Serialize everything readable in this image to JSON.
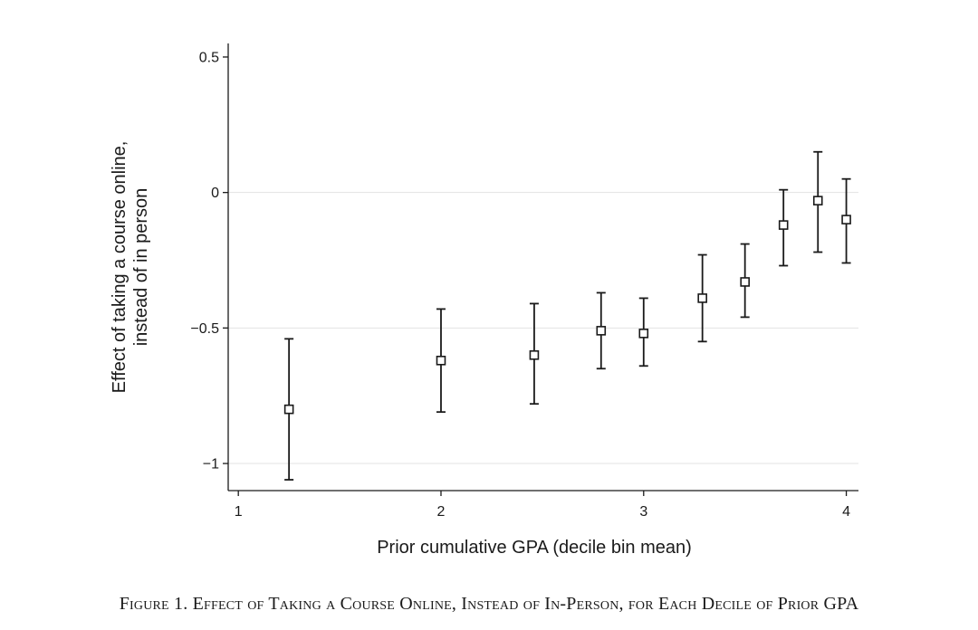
{
  "chart_data": {
    "type": "scatter",
    "title": "",
    "xlabel": "Prior cumulative GPA (decile bin mean)",
    "ylabel_lines": [
      "Effect of taking a course online,",
      "instead of in person"
    ],
    "xlim": [
      0.95,
      4.06
    ],
    "ylim": [
      -1.1,
      0.55
    ],
    "xticks": [
      {
        "value": 1,
        "label": "1"
      },
      {
        "value": 2,
        "label": "2"
      },
      {
        "value": 3,
        "label": "3"
      },
      {
        "value": 4,
        "label": "4"
      }
    ],
    "yticks": [
      {
        "value": 0.5,
        "label": "0.5"
      },
      {
        "value": 0,
        "label": "0"
      },
      {
        "value": -0.5,
        "label": "−0.5"
      },
      {
        "value": -1,
        "label": "−1"
      }
    ],
    "grid": "horizontal",
    "marker": "hollow-square",
    "points": [
      {
        "x": 1.25,
        "y": -0.8,
        "lo": -1.06,
        "hi": -0.54
      },
      {
        "x": 2.0,
        "y": -0.62,
        "lo": -0.81,
        "hi": -0.43
      },
      {
        "x": 2.46,
        "y": -0.6,
        "lo": -0.78,
        "hi": -0.41
      },
      {
        "x": 2.79,
        "y": -0.51,
        "lo": -0.65,
        "hi": -0.37
      },
      {
        "x": 3.0,
        "y": -0.52,
        "lo": -0.64,
        "hi": -0.39
      },
      {
        "x": 3.29,
        "y": -0.39,
        "lo": -0.55,
        "hi": -0.23
      },
      {
        "x": 3.5,
        "y": -0.33,
        "lo": -0.46,
        "hi": -0.19
      },
      {
        "x": 3.69,
        "y": -0.12,
        "lo": -0.27,
        "hi": 0.01
      },
      {
        "x": 3.86,
        "y": -0.03,
        "lo": -0.22,
        "hi": 0.15
      },
      {
        "x": 4.0,
        "y": -0.1,
        "lo": -0.26,
        "hi": 0.05
      }
    ]
  },
  "caption": "Figure 1. Effect of Taking a Course Online, Instead of In-Person, for Each Decile of Prior GPA"
}
